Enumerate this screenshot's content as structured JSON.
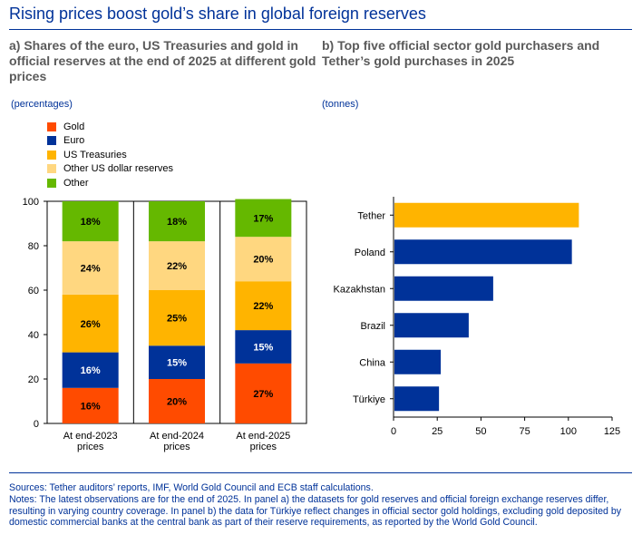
{
  "title": "Rising prices boost gold’s share in global foreign reserves",
  "panel_a": {
    "title": "a) Shares of the euro, US Treasuries and gold in official reserves at the end of 2025 at different gold prices",
    "unit": "(percentages)"
  },
  "panel_b": {
    "title": "b) Top five official sector gold purchasers and Tether’s gold purchases in 2025",
    "unit": "(tonnes)"
  },
  "colors": {
    "gold": "#ff4b00",
    "euro": "#003299",
    "us_treasuries": "#ffb400",
    "other_usd": "#ffd780",
    "other": "#65b800"
  },
  "chart_data": [
    {
      "type": "bar",
      "stacked": true,
      "categories": [
        [
          "At end-2023",
          "prices"
        ],
        [
          "At end-2024",
          "prices"
        ],
        [
          "At end-2025",
          "prices"
        ]
      ],
      "ylim": [
        0,
        100
      ],
      "yticks": [
        0,
        20,
        40,
        60,
        80,
        100
      ],
      "legend_position": "top-left",
      "series": [
        {
          "name": "Gold",
          "color_key": "gold",
          "values": [
            16,
            20,
            27
          ],
          "label_color": "#000000"
        },
        {
          "name": "Euro",
          "color_key": "euro",
          "values": [
            16,
            15,
            15
          ],
          "label_color": "#ffffff"
        },
        {
          "name": "US Treasuries",
          "color_key": "us_treasuries",
          "values": [
            26,
            25,
            22
          ],
          "label_color": "#000000"
        },
        {
          "name": "Other US dollar reserves",
          "color_key": "other_usd",
          "values": [
            24,
            22,
            20
          ],
          "label_color": "#000000"
        },
        {
          "name": "Other",
          "color_key": "other",
          "values": [
            18,
            18,
            17
          ],
          "label_color": "#000000"
        }
      ],
      "data_labels": [
        [
          "16%",
          "20%",
          "27%"
        ],
        [
          "16%",
          "15%",
          "15%"
        ],
        [
          "26%",
          "25%",
          "22%"
        ],
        [
          "24%",
          "22%",
          "20%"
        ],
        [
          "18%",
          "18%",
          "17%"
        ]
      ]
    },
    {
      "type": "bar",
      "orientation": "horizontal",
      "categories": [
        "Tether",
        "Poland",
        "Kazakhstan",
        "Brazil",
        "China",
        "Türkiye"
      ],
      "values": [
        106,
        102,
        57,
        43,
        27,
        26
      ],
      "colors": [
        "#ffb400",
        "#003299",
        "#003299",
        "#003299",
        "#003299",
        "#003299"
      ],
      "xlim": [
        0,
        125
      ],
      "xticks": [
        0,
        25,
        50,
        75,
        100,
        125
      ]
    }
  ],
  "sources": "Sources: Tether auditors’ reports, IMF, World Gold Council and ECB staff calculations.",
  "notes": "Notes: The latest observations are for the end of 2025. In panel a) the datasets for gold reserves and official foreign exchange reserves differ, resulting in varying country coverage. In panel b) the data for Türkiye reflect changes in official sector gold holdings, excluding gold deposited by domestic commercial banks at the central bank as part of their reserve requirements, as reported by the World Gold Council."
}
